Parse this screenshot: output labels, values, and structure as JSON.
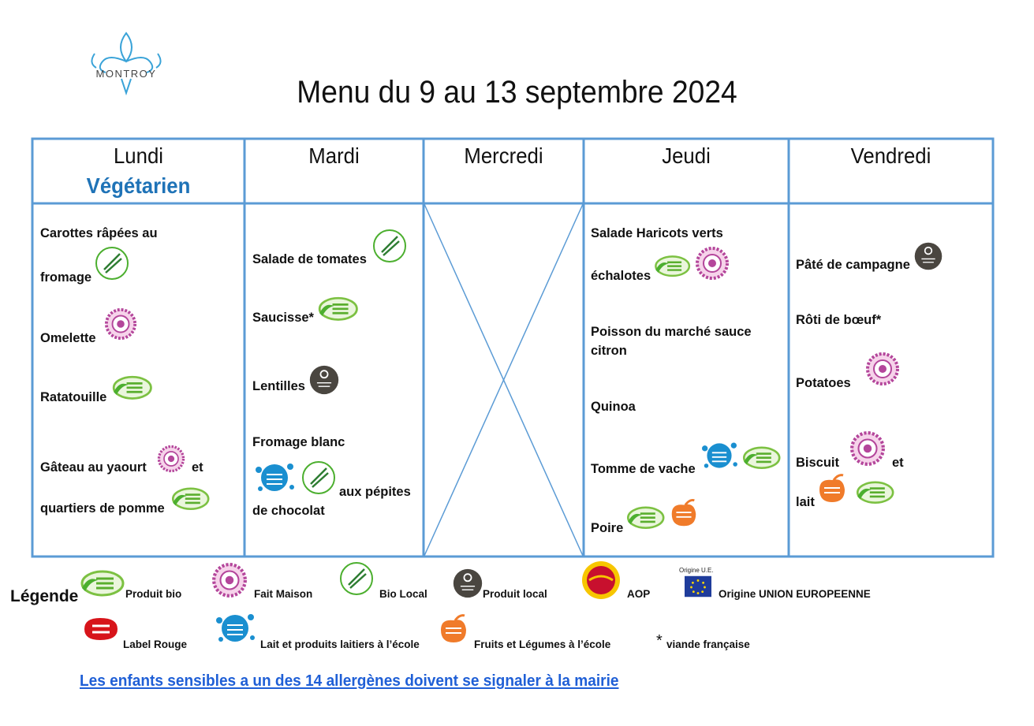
{
  "header": {
    "logo": "MONTROY",
    "title": "Menu du 9 au 13 septembre 2024"
  },
  "table": {
    "days": [
      {
        "name": "Lundi",
        "note": "Végétarien"
      },
      {
        "name": "Mardi"
      },
      {
        "name": "Mercredi"
      },
      {
        "name": "Jeudi"
      },
      {
        "name": "Vendredi"
      }
    ],
    "cells": [
      [
        "Carottes râpées au",
        "fromage",
        "Omelette",
        "Ratatouille",
        "Gâteau au yaourt",
        "et",
        "quartiers de pomme"
      ],
      [
        "Salade de tomates",
        "Saucisse*",
        "Lentilles",
        "Fromage blanc",
        "aux pépites",
        "de chocolat"
      ],
      [],
      [
        "Salade Haricots verts",
        "échalotes",
        "Poisson du marché sauce citron",
        "Quinoa",
        "Tomme de vache",
        "Poire"
      ],
      [
        "Pâté de campagne",
        "Rôti de bœuf*",
        "Potatoes",
        "Biscuit",
        "et",
        "lait"
      ]
    ]
  },
  "legend": {
    "title": "Légende",
    "items": [
      "Produit bio",
      "Fait Maison",
      "Bio Local",
      "Produit local",
      "AOP",
      "Origine UNION EUROPEENNE",
      "Label Rouge",
      "Lait et produits laitiers à l’école",
      "Fruits et Légumes à l’école",
      "viande française"
    ],
    "eu_caption": "Origine U.E.",
    "star": "*"
  },
  "footer": "Les enfants sensibles a un des 14 allergènes doivent se signaler à la mairie"
}
